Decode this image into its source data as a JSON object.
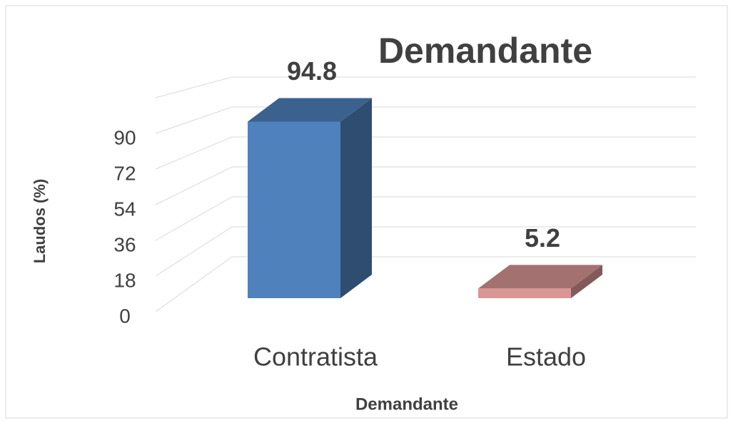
{
  "chart_data": {
    "type": "bar3d",
    "title": "Demandante",
    "x_label": "Demandante",
    "y_label": "Laudos (%)",
    "categories": [
      "Contratista",
      "Estado"
    ],
    "values": [
      94.8,
      5.2
    ],
    "colors": [
      "#4f81bd",
      "#d99694"
    ],
    "ylim": [
      0,
      108
    ],
    "yticks": [
      0,
      18,
      36,
      54,
      72,
      90
    ],
    "grid": true
  }
}
